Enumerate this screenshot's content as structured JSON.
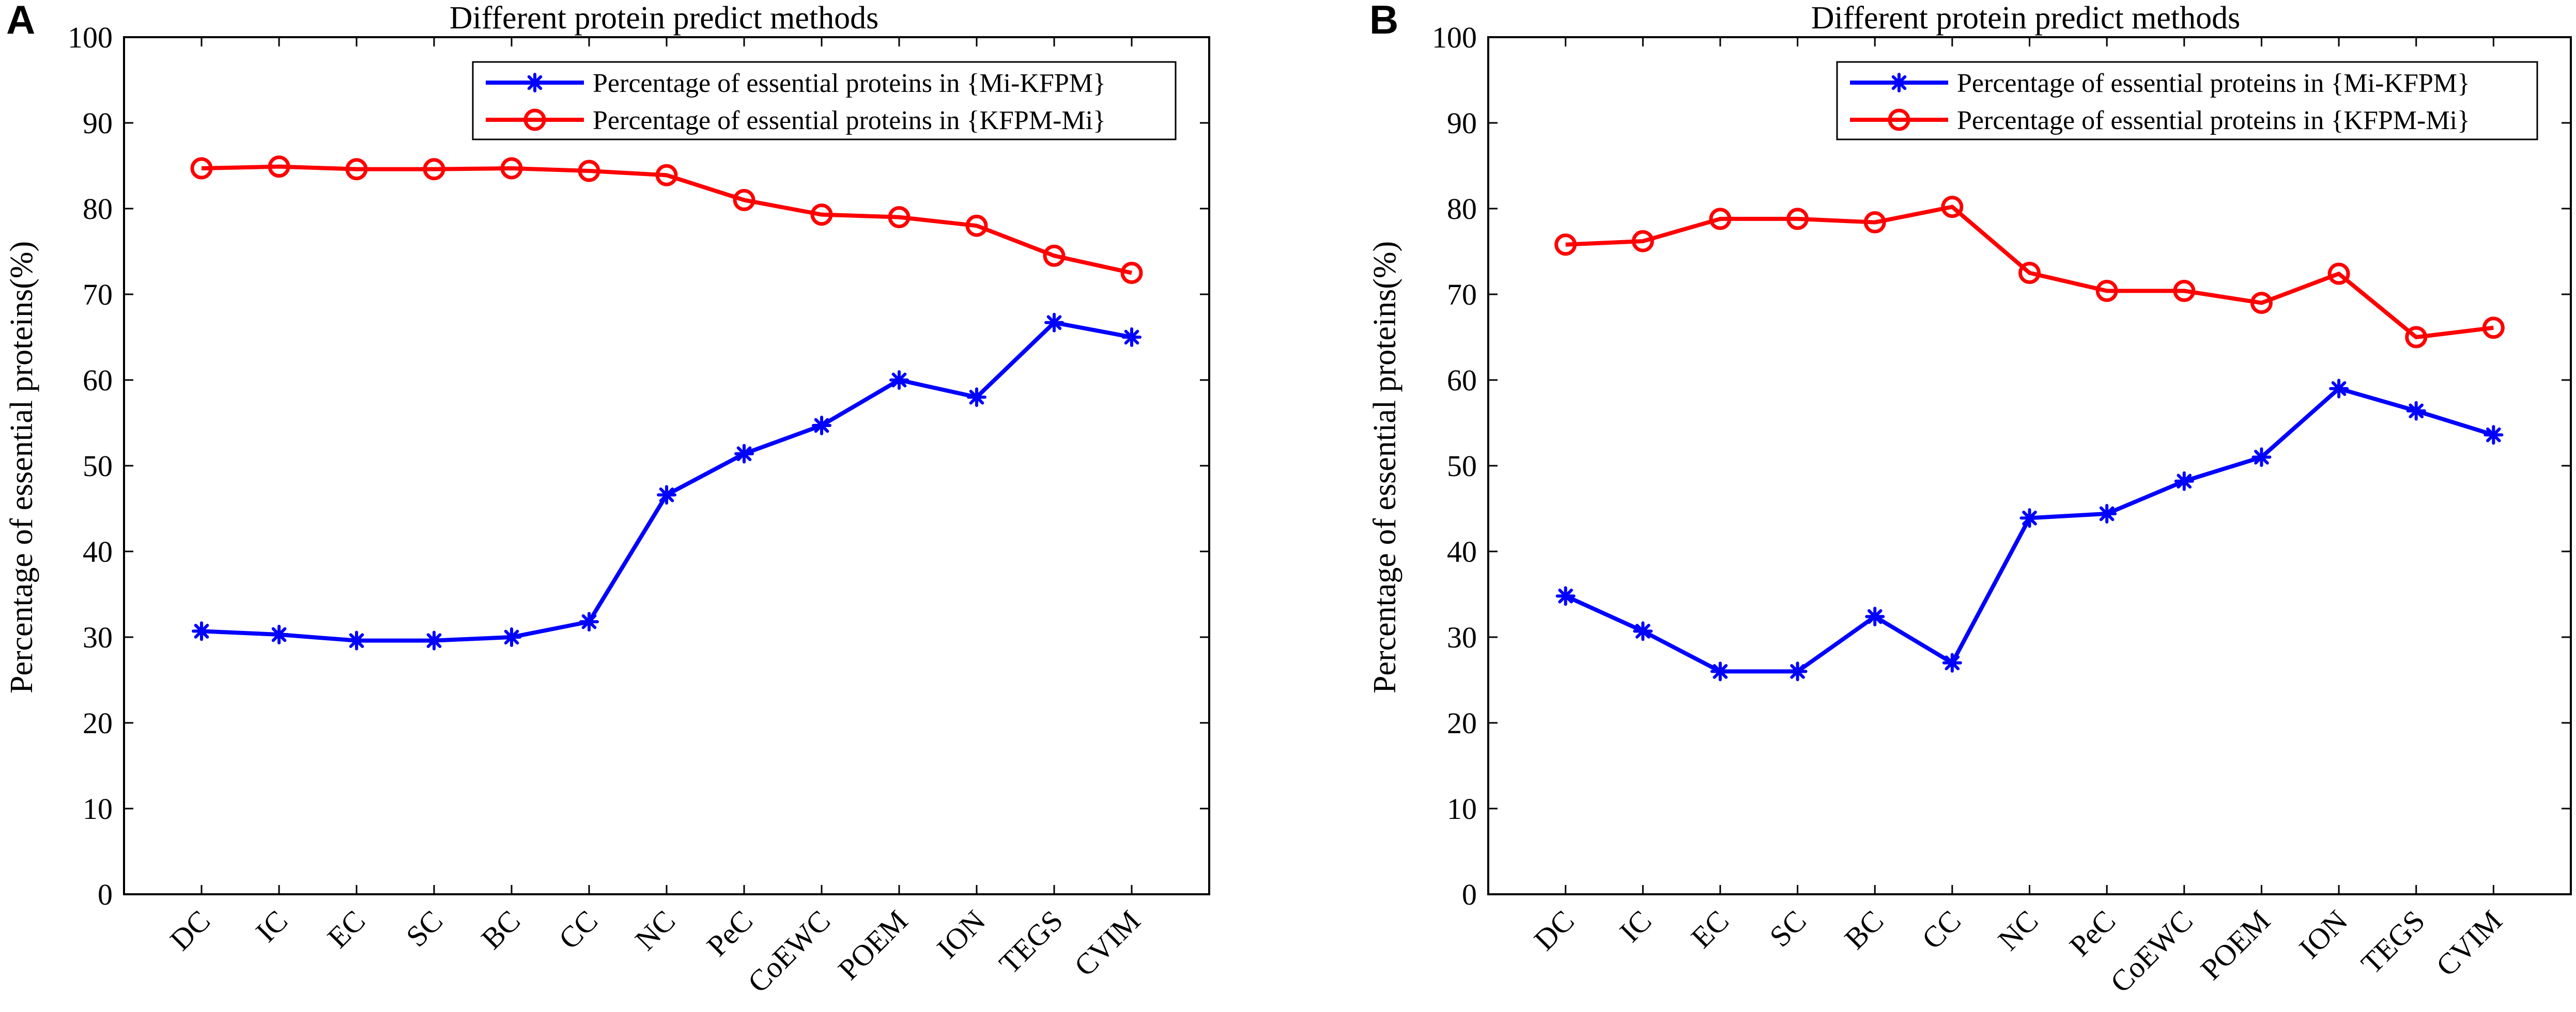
{
  "colors": {
    "series1": "#0000ff",
    "series2": "#ff0000"
  },
  "chart_data": [
    {
      "panel": "A",
      "type": "line",
      "title": "Different protein predict methods",
      "xlabel": "",
      "ylabel": "Percentage of essential proteins(%)",
      "ylim": [
        0,
        100
      ],
      "yticks": [
        "0",
        "10",
        "20",
        "30",
        "40",
        "50",
        "60",
        "70",
        "80",
        "90",
        "100"
      ],
      "categories": [
        "DC",
        "IC",
        "EC",
        "SC",
        "BC",
        "CC",
        "NC",
        "PeC",
        "CoEWC",
        "POEM",
        "ION",
        "TEGS",
        "CVIM"
      ],
      "legend_position": "top-right",
      "series": [
        {
          "name": "Percentage of essential proteins in {Mi-KFPM}",
          "marker": "asterisk",
          "values": [
            30.7,
            30.3,
            29.6,
            29.6,
            30.0,
            31.8,
            46.6,
            51.4,
            54.7,
            60.0,
            58.0,
            66.7,
            65.0
          ]
        },
        {
          "name": "Percentage of essential proteins in {KFPM-Mi}",
          "marker": "circle",
          "values": [
            84.7,
            84.9,
            84.6,
            84.6,
            84.7,
            84.4,
            83.9,
            81.0,
            79.3,
            79.0,
            78.0,
            74.5,
            72.5
          ]
        }
      ]
    },
    {
      "panel": "B",
      "type": "line",
      "title": "Different protein predict methods",
      "xlabel": "",
      "ylabel": "Percentage of essential proteins(%)",
      "ylim": [
        0,
        100
      ],
      "yticks": [
        "0",
        "10",
        "20",
        "30",
        "40",
        "50",
        "60",
        "70",
        "80",
        "90",
        "100"
      ],
      "categories": [
        "DC",
        "IC",
        "EC",
        "SC",
        "BC",
        "CC",
        "NC",
        "PeC",
        "CoEWC",
        "POEM",
        "ION",
        "TEGS",
        "CVIM"
      ],
      "legend_position": "top-right",
      "series": [
        {
          "name": "Percentage of essential proteins in {Mi-KFPM}",
          "marker": "asterisk",
          "values": [
            34.8,
            30.7,
            26.0,
            26.0,
            32.4,
            27.0,
            43.9,
            44.4,
            48.2,
            51.0,
            59.0,
            56.4,
            53.6
          ]
        },
        {
          "name": "Percentage of essential proteins in {KFPM-Mi}",
          "marker": "circle",
          "values": [
            75.8,
            76.2,
            78.8,
            78.8,
            78.4,
            80.2,
            72.5,
            70.4,
            70.4,
            69.0,
            72.4,
            65.0,
            66.1
          ]
        }
      ]
    }
  ]
}
